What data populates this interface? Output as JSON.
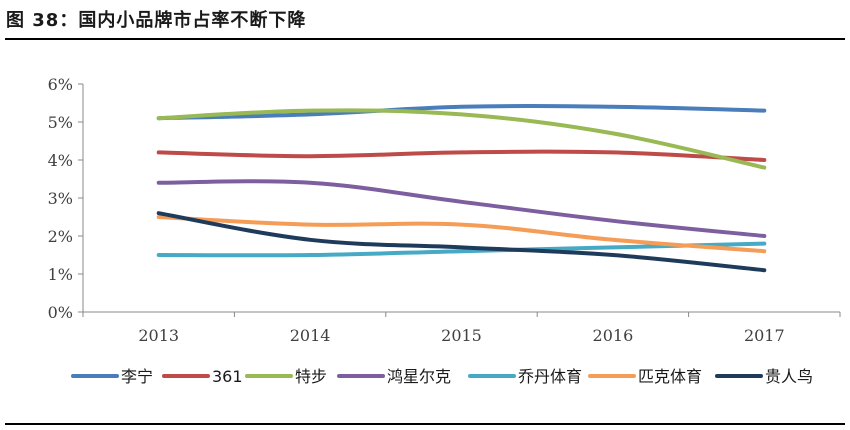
{
  "header": {
    "title": "图 38：国内小品牌市占率不断下降"
  },
  "chart_data": {
    "type": "line",
    "title": "",
    "xlabel": "",
    "ylabel": "",
    "categories": [
      "2013",
      "2014",
      "2015",
      "2016",
      "2017"
    ],
    "ylim": [
      0,
      6
    ],
    "yticks": [
      "0%",
      "1%",
      "2%",
      "3%",
      "4%",
      "5%",
      "6%"
    ],
    "grid": false,
    "legend_position": "bottom",
    "series": [
      {
        "name": "李宁",
        "color": "#4a7ebb",
        "values": [
          5.1,
          5.2,
          5.4,
          5.4,
          5.3
        ]
      },
      {
        "name": "361",
        "color": "#be4b48",
        "values": [
          4.2,
          4.1,
          4.2,
          4.2,
          4.0
        ]
      },
      {
        "name": "特步",
        "color": "#98b954",
        "values": [
          5.1,
          5.3,
          5.2,
          4.7,
          3.8
        ]
      },
      {
        "name": "鸿星尔克",
        "color": "#7d5fa0",
        "values": [
          3.4,
          3.4,
          2.9,
          2.4,
          2.0
        ]
      },
      {
        "name": "乔丹体育",
        "color": "#46aac5",
        "values": [
          1.5,
          1.5,
          1.6,
          1.7,
          1.8
        ]
      },
      {
        "name": "匹克体育",
        "color": "#f59d56",
        "values": [
          2.5,
          2.3,
          2.3,
          1.9,
          1.6
        ]
      },
      {
        "name": "贵人鸟",
        "color": "#1f3b5c",
        "values": [
          2.6,
          1.9,
          1.7,
          1.5,
          1.1
        ]
      }
    ]
  }
}
